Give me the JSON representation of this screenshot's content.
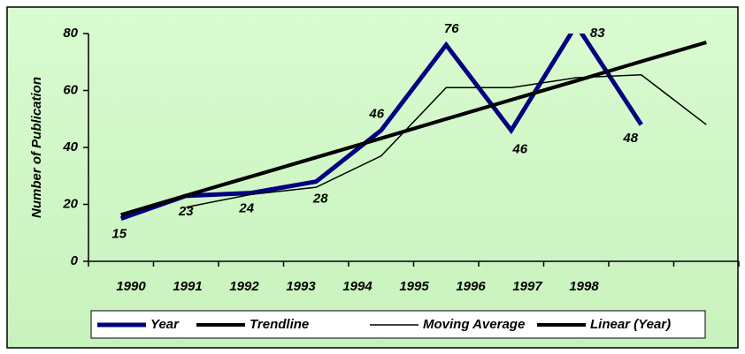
{
  "chart_data": {
    "type": "line",
    "y_label": "Number of Publication",
    "categories": [
      "1990",
      "1991",
      "1992",
      "1993",
      "1994",
      "1995",
      "1996",
      "1997",
      "1998",
      null
    ],
    "series": [
      {
        "name": "Year",
        "color": "#000080",
        "values": [
          15,
          23,
          24,
          28,
          46,
          76,
          46,
          83,
          48,
          null
        ],
        "labels": true
      },
      {
        "name": "Trendline",
        "color": "#000000",
        "values": [
          16.3,
          23.1,
          29.8,
          36.5,
          43.2,
          50,
          56.7,
          63.4,
          70.2,
          76.9
        ]
      },
      {
        "name": "Moving Average",
        "color": "#000000",
        "values": [
          null,
          19,
          23.5,
          26,
          37,
          61,
          61,
          64.5,
          65.5,
          48
        ]
      },
      {
        "name": "Linear (Year)",
        "color": "#000000",
        "values": [
          16.3,
          23.1,
          29.8,
          36.5,
          43.2,
          50,
          56.7,
          63.4,
          70.2,
          76.9
        ]
      }
    ],
    "ylim": [
      0,
      80
    ],
    "yticks": [
      0,
      20,
      40,
      60,
      80
    ],
    "legend": "bottom"
  }
}
